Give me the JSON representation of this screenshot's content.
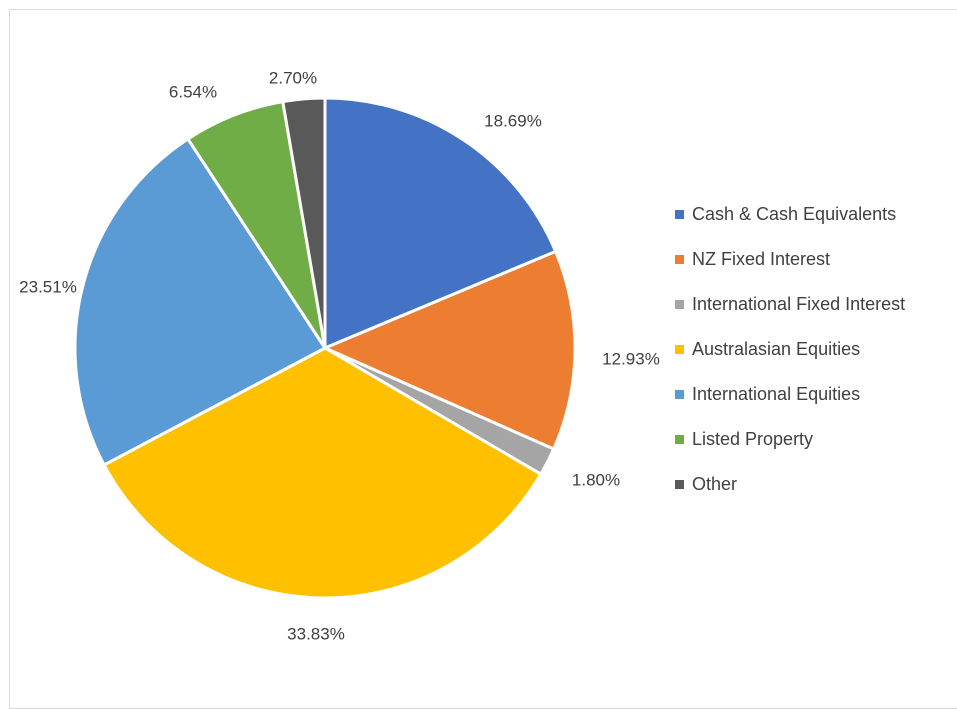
{
  "chart_data": {
    "type": "pie",
    "title": "",
    "legend_position": "right",
    "slices": [
      {
        "label": "Cash & Cash Equivalents",
        "value": 18.69,
        "value_label": "18.69%",
        "color": "#4472C4"
      },
      {
        "label": "NZ Fixed Interest",
        "value": 12.93,
        "value_label": "12.93%",
        "color": "#ED7D31"
      },
      {
        "label": "International Fixed Interest",
        "value": 1.8,
        "value_label": "1.80%",
        "color": "#A5A5A5"
      },
      {
        "label": "Australasian Equities",
        "value": 33.83,
        "value_label": "33.83%",
        "color": "#FFC000"
      },
      {
        "label": "International Equities",
        "value": 23.51,
        "value_label": "23.51%",
        "color": "#5B9BD5"
      },
      {
        "label": "Listed Property",
        "value": 6.54,
        "value_label": "6.54%",
        "color": "#70AD47"
      },
      {
        "label": "Other",
        "value": 2.7,
        "value_label": "2.70%",
        "color": "#595959"
      }
    ]
  }
}
